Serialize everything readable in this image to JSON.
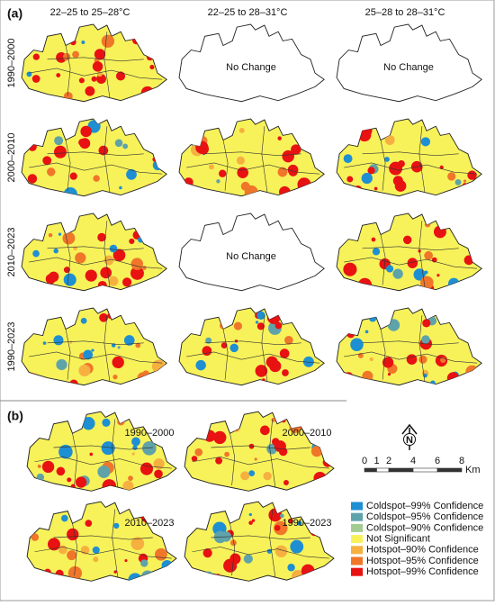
{
  "panel_a": {
    "label": "(a)",
    "columns": [
      "22–25 to 25–28°C",
      "22–25 to 28–31°C",
      "25–28 to 28–31°C"
    ],
    "rows": [
      "1990–2000",
      "2000–2010",
      "2010–2023",
      "1990–2023"
    ],
    "no_change": "No Change"
  },
  "panel_b": {
    "label": "(b)",
    "maps": [
      "1990–2000",
      "2000–2010",
      "2010–2023",
      "1990–2023"
    ]
  },
  "north": "N",
  "scale_bar": {
    "ticks": [
      0,
      1,
      2,
      4,
      6,
      8
    ],
    "unit": "Km"
  },
  "legend": [
    {
      "label": "Coldspot–99% Confidence",
      "color": "#1e8fd2"
    },
    {
      "label": "Coldspot–95% Confidence",
      "color": "#5fa3aa"
    },
    {
      "label": "Coldspot–90% Confidence",
      "color": "#a3cc92"
    },
    {
      "label": "Not Significant",
      "color": "#f7f25a"
    },
    {
      "label": "Hotspot–90% Confidence",
      "color": "#f6b040"
    },
    {
      "label": "Hotspot–95% Confidence",
      "color": "#f0762a"
    },
    {
      "label": "Hotspot–99% Confidence",
      "color": "#e81212"
    }
  ]
}
